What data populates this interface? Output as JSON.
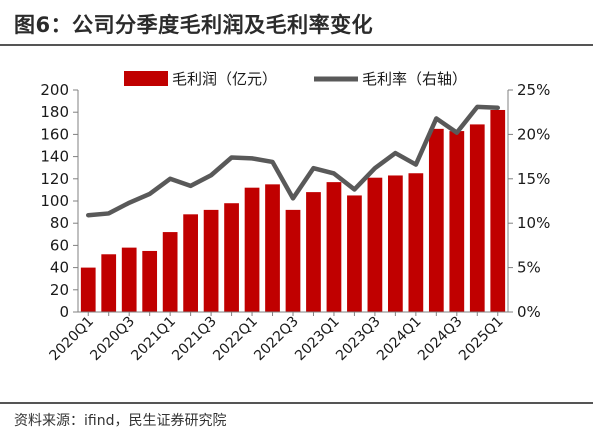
{
  "title": "图6：公司分季度毛利润及毛利率变化",
  "source": "资料来源：ifind，民生证券研究院",
  "colors": {
    "bar": "#c00000",
    "line": "#595959",
    "rule": "#555555"
  },
  "chart_data": {
    "type": "bar",
    "title": "",
    "xlabel": "",
    "legend_position": "top",
    "grid": false,
    "categories": [
      "2020Q1",
      "2020Q2",
      "2020Q3",
      "2020Q4",
      "2021Q1",
      "2021Q2",
      "2021Q3",
      "2021Q4",
      "2022Q1",
      "2022Q2",
      "2022Q3",
      "2022Q4",
      "2023Q1",
      "2023Q2",
      "2023Q3",
      "2023Q4",
      "2024Q1",
      "2024Q2",
      "2024Q3",
      "2024Q4",
      "2025Q1"
    ],
    "x_tick_labels": [
      "2020Q1",
      "2020Q3",
      "2021Q1",
      "2021Q3",
      "2022Q1",
      "2022Q3",
      "2023Q1",
      "2023Q3",
      "2024Q1",
      "2024Q3",
      "2025Q1"
    ],
    "y_left": {
      "min": 0,
      "max": 200,
      "ticks": [
        "0",
        "20",
        "40",
        "60",
        "80",
        "100",
        "120",
        "140",
        "160",
        "180",
        "200"
      ]
    },
    "y_right": {
      "min": 0,
      "max": 25,
      "ticks": [
        "0%",
        "5%",
        "10%",
        "15%",
        "20%",
        "25%"
      ]
    },
    "series": [
      {
        "name": "毛利润（亿元）",
        "type": "bar",
        "axis": "left",
        "values": [
          40,
          52,
          58,
          55,
          72,
          88,
          92,
          98,
          112,
          115,
          92,
          108,
          117,
          105,
          121,
          123,
          125,
          165,
          163,
          169,
          182
        ]
      },
      {
        "name": "毛利率（右轴）",
        "type": "line",
        "axis": "right",
        "values": [
          10.9,
          11.1,
          12.3,
          13.3,
          15.0,
          14.2,
          15.4,
          17.4,
          17.3,
          16.9,
          12.8,
          16.2,
          15.6,
          13.8,
          16.2,
          17.9,
          16.6,
          21.8,
          20.2,
          23.1,
          23.0
        ]
      }
    ]
  }
}
